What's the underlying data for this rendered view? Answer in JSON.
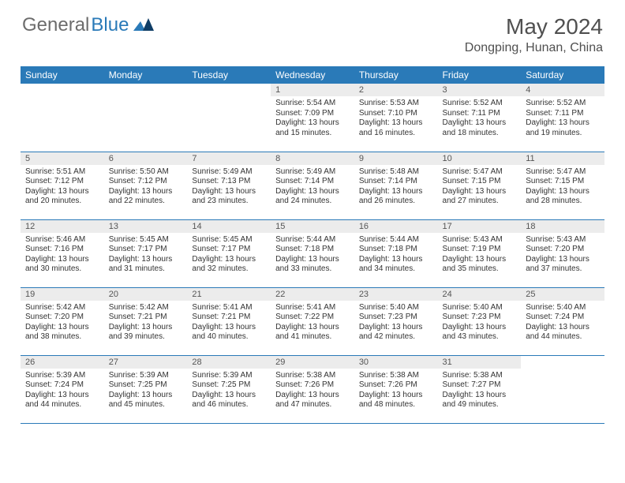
{
  "brand": {
    "part1": "General",
    "part2": "Blue"
  },
  "title": {
    "month": "May 2024",
    "location": "Dongping, Hunan, China"
  },
  "colors": {
    "header_bg": "#2a7ab8",
    "header_fg": "#ffffff",
    "daynum_bg": "#ececec",
    "text": "#333333",
    "rule": "#2a7ab8"
  },
  "dow": [
    "Sunday",
    "Monday",
    "Tuesday",
    "Wednesday",
    "Thursday",
    "Friday",
    "Saturday"
  ],
  "weeks": [
    [
      {
        "empty": true
      },
      {
        "empty": true
      },
      {
        "empty": true
      },
      {
        "n": "1",
        "sr": "Sunrise: 5:54 AM",
        "ss": "Sunset: 7:09 PM",
        "d1": "Daylight: 13 hours",
        "d2": "and 15 minutes."
      },
      {
        "n": "2",
        "sr": "Sunrise: 5:53 AM",
        "ss": "Sunset: 7:10 PM",
        "d1": "Daylight: 13 hours",
        "d2": "and 16 minutes."
      },
      {
        "n": "3",
        "sr": "Sunrise: 5:52 AM",
        "ss": "Sunset: 7:11 PM",
        "d1": "Daylight: 13 hours",
        "d2": "and 18 minutes."
      },
      {
        "n": "4",
        "sr": "Sunrise: 5:52 AM",
        "ss": "Sunset: 7:11 PM",
        "d1": "Daylight: 13 hours",
        "d2": "and 19 minutes."
      }
    ],
    [
      {
        "n": "5",
        "sr": "Sunrise: 5:51 AM",
        "ss": "Sunset: 7:12 PM",
        "d1": "Daylight: 13 hours",
        "d2": "and 20 minutes."
      },
      {
        "n": "6",
        "sr": "Sunrise: 5:50 AM",
        "ss": "Sunset: 7:12 PM",
        "d1": "Daylight: 13 hours",
        "d2": "and 22 minutes."
      },
      {
        "n": "7",
        "sr": "Sunrise: 5:49 AM",
        "ss": "Sunset: 7:13 PM",
        "d1": "Daylight: 13 hours",
        "d2": "and 23 minutes."
      },
      {
        "n": "8",
        "sr": "Sunrise: 5:49 AM",
        "ss": "Sunset: 7:14 PM",
        "d1": "Daylight: 13 hours",
        "d2": "and 24 minutes."
      },
      {
        "n": "9",
        "sr": "Sunrise: 5:48 AM",
        "ss": "Sunset: 7:14 PM",
        "d1": "Daylight: 13 hours",
        "d2": "and 26 minutes."
      },
      {
        "n": "10",
        "sr": "Sunrise: 5:47 AM",
        "ss": "Sunset: 7:15 PM",
        "d1": "Daylight: 13 hours",
        "d2": "and 27 minutes."
      },
      {
        "n": "11",
        "sr": "Sunrise: 5:47 AM",
        "ss": "Sunset: 7:15 PM",
        "d1": "Daylight: 13 hours",
        "d2": "and 28 minutes."
      }
    ],
    [
      {
        "n": "12",
        "sr": "Sunrise: 5:46 AM",
        "ss": "Sunset: 7:16 PM",
        "d1": "Daylight: 13 hours",
        "d2": "and 30 minutes."
      },
      {
        "n": "13",
        "sr": "Sunrise: 5:45 AM",
        "ss": "Sunset: 7:17 PM",
        "d1": "Daylight: 13 hours",
        "d2": "and 31 minutes."
      },
      {
        "n": "14",
        "sr": "Sunrise: 5:45 AM",
        "ss": "Sunset: 7:17 PM",
        "d1": "Daylight: 13 hours",
        "d2": "and 32 minutes."
      },
      {
        "n": "15",
        "sr": "Sunrise: 5:44 AM",
        "ss": "Sunset: 7:18 PM",
        "d1": "Daylight: 13 hours",
        "d2": "and 33 minutes."
      },
      {
        "n": "16",
        "sr": "Sunrise: 5:44 AM",
        "ss": "Sunset: 7:18 PM",
        "d1": "Daylight: 13 hours",
        "d2": "and 34 minutes."
      },
      {
        "n": "17",
        "sr": "Sunrise: 5:43 AM",
        "ss": "Sunset: 7:19 PM",
        "d1": "Daylight: 13 hours",
        "d2": "and 35 minutes."
      },
      {
        "n": "18",
        "sr": "Sunrise: 5:43 AM",
        "ss": "Sunset: 7:20 PM",
        "d1": "Daylight: 13 hours",
        "d2": "and 37 minutes."
      }
    ],
    [
      {
        "n": "19",
        "sr": "Sunrise: 5:42 AM",
        "ss": "Sunset: 7:20 PM",
        "d1": "Daylight: 13 hours",
        "d2": "and 38 minutes."
      },
      {
        "n": "20",
        "sr": "Sunrise: 5:42 AM",
        "ss": "Sunset: 7:21 PM",
        "d1": "Daylight: 13 hours",
        "d2": "and 39 minutes."
      },
      {
        "n": "21",
        "sr": "Sunrise: 5:41 AM",
        "ss": "Sunset: 7:21 PM",
        "d1": "Daylight: 13 hours",
        "d2": "and 40 minutes."
      },
      {
        "n": "22",
        "sr": "Sunrise: 5:41 AM",
        "ss": "Sunset: 7:22 PM",
        "d1": "Daylight: 13 hours",
        "d2": "and 41 minutes."
      },
      {
        "n": "23",
        "sr": "Sunrise: 5:40 AM",
        "ss": "Sunset: 7:23 PM",
        "d1": "Daylight: 13 hours",
        "d2": "and 42 minutes."
      },
      {
        "n": "24",
        "sr": "Sunrise: 5:40 AM",
        "ss": "Sunset: 7:23 PM",
        "d1": "Daylight: 13 hours",
        "d2": "and 43 minutes."
      },
      {
        "n": "25",
        "sr": "Sunrise: 5:40 AM",
        "ss": "Sunset: 7:24 PM",
        "d1": "Daylight: 13 hours",
        "d2": "and 44 minutes."
      }
    ],
    [
      {
        "n": "26",
        "sr": "Sunrise: 5:39 AM",
        "ss": "Sunset: 7:24 PM",
        "d1": "Daylight: 13 hours",
        "d2": "and 44 minutes."
      },
      {
        "n": "27",
        "sr": "Sunrise: 5:39 AM",
        "ss": "Sunset: 7:25 PM",
        "d1": "Daylight: 13 hours",
        "d2": "and 45 minutes."
      },
      {
        "n": "28",
        "sr": "Sunrise: 5:39 AM",
        "ss": "Sunset: 7:25 PM",
        "d1": "Daylight: 13 hours",
        "d2": "and 46 minutes."
      },
      {
        "n": "29",
        "sr": "Sunrise: 5:38 AM",
        "ss": "Sunset: 7:26 PM",
        "d1": "Daylight: 13 hours",
        "d2": "and 47 minutes."
      },
      {
        "n": "30",
        "sr": "Sunrise: 5:38 AM",
        "ss": "Sunset: 7:26 PM",
        "d1": "Daylight: 13 hours",
        "d2": "and 48 minutes."
      },
      {
        "n": "31",
        "sr": "Sunrise: 5:38 AM",
        "ss": "Sunset: 7:27 PM",
        "d1": "Daylight: 13 hours",
        "d2": "and 49 minutes."
      },
      {
        "empty": true
      }
    ]
  ]
}
